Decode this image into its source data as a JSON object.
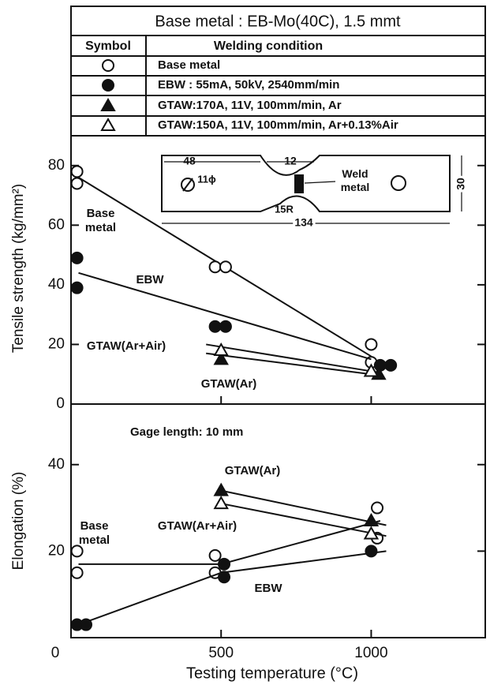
{
  "legend": {
    "title": "Base metal :  EB-Mo(40C), 1.5 mmt",
    "headers": [
      "Symbol",
      "Welding condition"
    ],
    "rows": [
      {
        "marker": "circle-open",
        "label": "Base metal"
      },
      {
        "marker": "circle-filled",
        "label": "EBW : 55mA, 50kV, 2540mm/min"
      },
      {
        "marker": "triangle-filled",
        "label": "GTAW:170A, 11V, 100mm/min, Ar"
      },
      {
        "marker": "triangle-open",
        "label": "GTAW:150A, 11V, 100mm/min, Ar+0.13%Air"
      }
    ]
  },
  "chart_data": [
    {
      "type": "scatter",
      "ylabel": "Tensile strength (kg/mm²)",
      "xlim": [
        0,
        1380
      ],
      "ylim": [
        0,
        90
      ],
      "xticks": [
        0,
        500,
        1000
      ],
      "yticks": [
        0,
        20,
        40,
        60,
        80
      ],
      "inset": {
        "labels": [
          "48",
          "12",
          "11ϕ",
          "Weld metal",
          "15R",
          "134",
          "30"
        ]
      },
      "series": [
        {
          "name": "Base metal",
          "marker": "circle-open",
          "x": [
            20,
            20,
            480,
            515,
            1000,
            1000
          ],
          "values": [
            78,
            74,
            46,
            46,
            20,
            14
          ],
          "fit": {
            "x": [
              25,
              1000
            ],
            "values": [
              76,
              16
            ]
          }
        },
        {
          "name": "EBW",
          "marker": "circle-filled",
          "x": [
            20,
            20,
            480,
            515,
            1030,
            1065
          ],
          "values": [
            49,
            39,
            26,
            26,
            13,
            13
          ],
          "fit": {
            "x": [
              25,
              1000
            ],
            "values": [
              44,
              15
            ]
          }
        },
        {
          "name": "GTAW(Ar)",
          "marker": "triangle-filled",
          "x": [
            500,
            1025
          ],
          "values": [
            15,
            10
          ],
          "fit": {
            "x": [
              450,
              1000
            ],
            "values": [
              17,
              10
            ]
          }
        },
        {
          "name": "GTAW(Ar+Air)",
          "marker": "triangle-open",
          "x": [
            500,
            1000
          ],
          "values": [
            18,
            11
          ],
          "fit": {
            "x": [
              450,
              1000
            ],
            "values": [
              20,
              11
            ]
          }
        }
      ]
    },
    {
      "type": "scatter",
      "ylabel": "Elongation (%)",
      "xlabel": "Testing temperature (°C)",
      "annotation": "Gage length: 10 mm",
      "xlim": [
        0,
        1380
      ],
      "ylim": [
        0,
        54
      ],
      "xticks": [
        0,
        500,
        1000
      ],
      "yticks": [
        20,
        40
      ],
      "series": [
        {
          "name": "Base metal",
          "marker": "circle-open",
          "x": [
            20,
            20,
            480,
            480,
            1020,
            1020
          ],
          "values": [
            20,
            15,
            19,
            15,
            30,
            23
          ],
          "fit": {
            "x": [
              25,
              500,
              1030
            ],
            "values": [
              17,
              17,
              27
            ]
          }
        },
        {
          "name": "EBW",
          "marker": "circle-filled",
          "x": [
            20,
            50,
            510,
            510,
            1000
          ],
          "values": [
            3,
            3,
            17,
            14,
            20
          ],
          "fit": {
            "x": [
              25,
              500,
              1050
            ],
            "values": [
              3,
              15,
              20
            ]
          }
        },
        {
          "name": "GTAW(Ar)",
          "marker": "triangle-filled",
          "x": [
            500,
            1000
          ],
          "values": [
            34,
            27
          ],
          "fit": {
            "x": [
              500,
              1050
            ],
            "values": [
              34,
              26
            ]
          }
        },
        {
          "name": "GTAW(Ar+Air)",
          "marker": "triangle-open",
          "x": [
            500,
            1000
          ],
          "values": [
            31,
            24
          ],
          "fit": {
            "x": [
              500,
              1050
            ],
            "values": [
              31,
              23.5
            ]
          }
        }
      ]
    }
  ]
}
